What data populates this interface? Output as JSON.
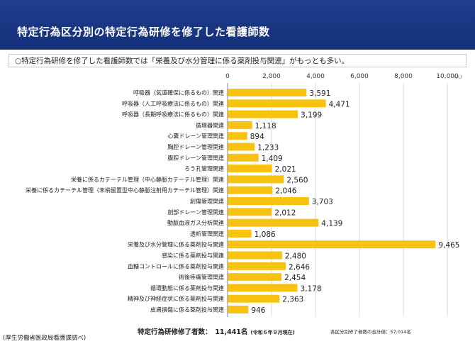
{
  "header": {
    "title": "特定行為区分別の特定行為研修を修了した看護師数",
    "subtitle": "○特定行為研修を修了した看護師数では「栄養及び水分管理に係る薬剤投与関連」がもっとも多い。"
  },
  "chart_data": {
    "type": "bar",
    "orientation": "horizontal",
    "unit": "（人）",
    "xlim": [
      0,
      10000
    ],
    "x_ticks": [
      "0",
      "2,000",
      "4,000",
      "6,000",
      "8,000",
      "10,000"
    ],
    "grid": true,
    "bar_color": "#f8c211",
    "categories": [
      "呼吸器（気道確保に係るもの）関連",
      "呼吸器（人工呼吸療法に係るもの）関連",
      "呼吸器（長期呼吸療法に係るもの）関連",
      "循環器関連",
      "心嚢ドレーン管理関連",
      "胸腔ドレーン管理関連",
      "腹腔ドレーン管理関連",
      "ろう孔管理関連",
      "栄養に係るカテーテル管理（中心静脈カテーテル管理）関連",
      "栄養に係るカテーテル管理（末梢留置型中心静脈注射用カテーテル管理）関連",
      "創傷管理関連",
      "創部ドレーン管理関連",
      "動脈血液ガス分析関連",
      "透析管理関連",
      "栄養及び水分管理に係る薬剤投与関連",
      "感染に係る薬剤投与関連",
      "血糖コントロールに係る薬剤投与関連",
      "術後疼痛管理関連",
      "循環動態に係る薬剤投与関連",
      "精神及び神経症状に係る薬剤投与関連",
      "皮膚損傷に係る薬剤投与関連"
    ],
    "values": [
      3591,
      4471,
      3199,
      1118,
      894,
      1233,
      1409,
      2021,
      2560,
      2046,
      3703,
      2012,
      4139,
      1086,
      9465,
      2480,
      2646,
      2454,
      3178,
      2363,
      946
    ],
    "value_labels": [
      "3,591",
      "4,471",
      "3,199",
      "1,118",
      "894",
      "1,233",
      "1,409",
      "2,021",
      "2,560",
      "2,046",
      "3,703",
      "2,012",
      "4,139",
      "1,086",
      "9,465",
      "2,480",
      "2,646",
      "2,454",
      "3,178",
      "2,363",
      "946"
    ]
  },
  "footer": {
    "source": "(厚生労働省医政局看護課調べ)",
    "total_label": "特定行為研修修了者数：　11,441名",
    "total_note": "(令和６年９月現在)",
    "sum_label": "各区分別修了者数の合計値：57,014名"
  }
}
